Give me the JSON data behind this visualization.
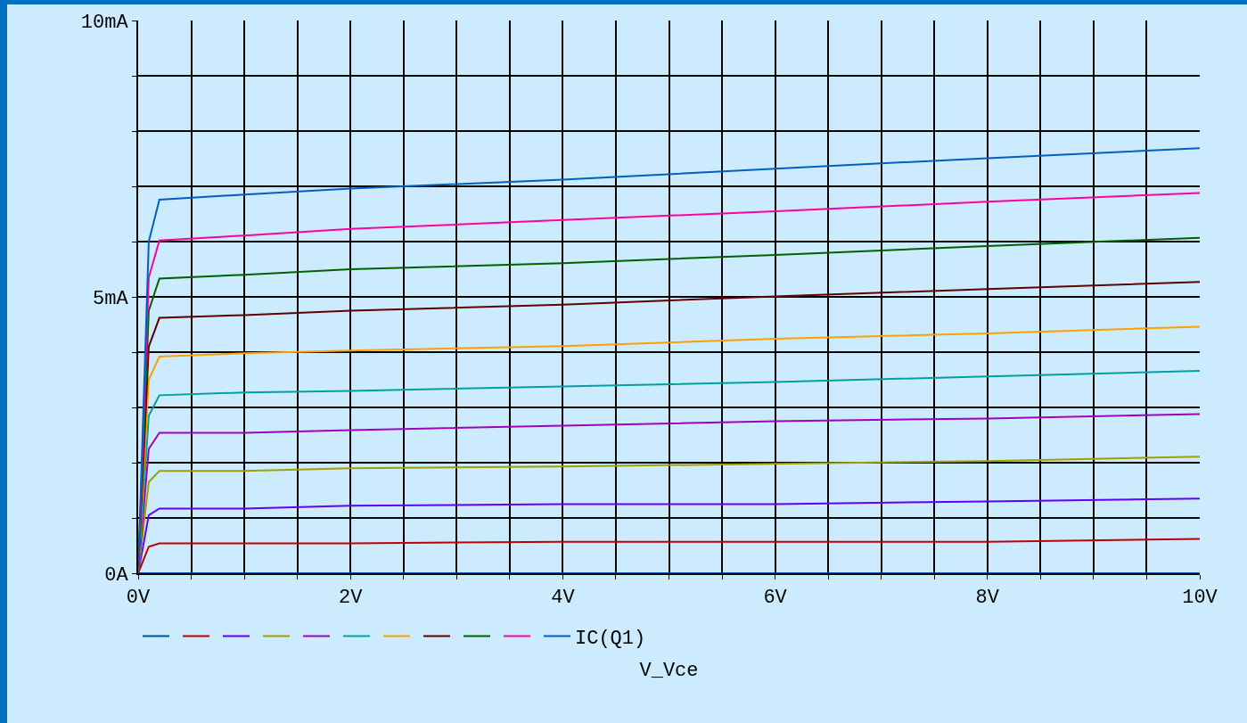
{
  "chart_data": {
    "type": "line",
    "xlabel": "V_Vce",
    "x": [
      0,
      0.1,
      0.2,
      1,
      2,
      4,
      6,
      8,
      10
    ],
    "series": [
      {
        "color": "#0050a0",
        "values": [
          0,
          0,
          0,
          0,
          0,
          0,
          0,
          0,
          0
        ]
      },
      {
        "color": "#c00000",
        "values": [
          0,
          0.48,
          0.54,
          0.54,
          0.54,
          0.57,
          0.57,
          0.57,
          0.62
        ]
      },
      {
        "color": "#6000ff",
        "values": [
          0,
          1.05,
          1.17,
          1.17,
          1.22,
          1.25,
          1.25,
          1.3,
          1.35
        ]
      },
      {
        "color": "#a0a000",
        "values": [
          0,
          1.65,
          1.85,
          1.85,
          1.9,
          1.93,
          1.98,
          2.03,
          2.11
        ]
      },
      {
        "color": "#a000c0",
        "values": [
          0,
          2.25,
          2.54,
          2.54,
          2.59,
          2.67,
          2.75,
          2.8,
          2.88
        ]
      },
      {
        "color": "#00a0a0",
        "values": [
          0,
          2.85,
          3.22,
          3.27,
          3.3,
          3.38,
          3.46,
          3.56,
          3.66
        ]
      },
      {
        "color": "#ffa000",
        "values": [
          0,
          3.5,
          3.92,
          3.98,
          4.03,
          4.11,
          4.24,
          4.34,
          4.46
        ]
      },
      {
        "color": "#600000",
        "values": [
          0,
          4.1,
          4.62,
          4.67,
          4.75,
          4.86,
          5.01,
          5.14,
          5.27
        ]
      },
      {
        "color": "#006000",
        "values": [
          0,
          4.75,
          5.33,
          5.4,
          5.5,
          5.61,
          5.76,
          5.92,
          6.07
        ]
      },
      {
        "color": "#ff00a0",
        "values": [
          0,
          5.35,
          6.02,
          6.11,
          6.23,
          6.39,
          6.55,
          6.72,
          6.88
        ]
      },
      {
        "name": "IC(Q1)",
        "color": "#0060c0",
        "values": [
          0,
          6.0,
          6.76,
          6.85,
          6.96,
          7.12,
          7.32,
          7.51,
          7.69
        ]
      }
    ],
    "xlim": [
      0,
      10
    ],
    "xticks": [
      {
        "value": 0,
        "label": "0V"
      },
      {
        "value": 0.5,
        "label": null
      },
      {
        "value": 1,
        "label": null
      },
      {
        "value": 1.5,
        "label": null
      },
      {
        "value": 2,
        "label": "2V"
      },
      {
        "value": 2.5,
        "label": null
      },
      {
        "value": 3,
        "label": null
      },
      {
        "value": 3.5,
        "label": null
      },
      {
        "value": 4,
        "label": "4V"
      },
      {
        "value": 4.5,
        "label": null
      },
      {
        "value": 5,
        "label": null
      },
      {
        "value": 5.5,
        "label": null
      },
      {
        "value": 6,
        "label": "6V"
      },
      {
        "value": 6.5,
        "label": null
      },
      {
        "value": 7,
        "label": null
      },
      {
        "value": 7.5,
        "label": null
      },
      {
        "value": 8,
        "label": "8V"
      },
      {
        "value": 8.5,
        "label": null
      },
      {
        "value": 9,
        "label": null
      },
      {
        "value": 9.5,
        "label": null
      },
      {
        "value": 10,
        "label": "10V"
      }
    ],
    "ylim": [
      0,
      10
    ],
    "yticks": [
      {
        "value": 0,
        "label": "0A"
      },
      {
        "value": 1,
        "label": null
      },
      {
        "value": 2,
        "label": null
      },
      {
        "value": 3,
        "label": null
      },
      {
        "value": 4,
        "label": null
      },
      {
        "value": 5,
        "label": "5mA"
      },
      {
        "value": 6,
        "label": null
      },
      {
        "value": 7,
        "label": null
      },
      {
        "value": 8,
        "label": null
      },
      {
        "value": 9,
        "label": null
      },
      {
        "value": 10,
        "label": "10mA"
      }
    ],
    "grid": true,
    "legend": "bottom",
    "line_style": "solid"
  }
}
